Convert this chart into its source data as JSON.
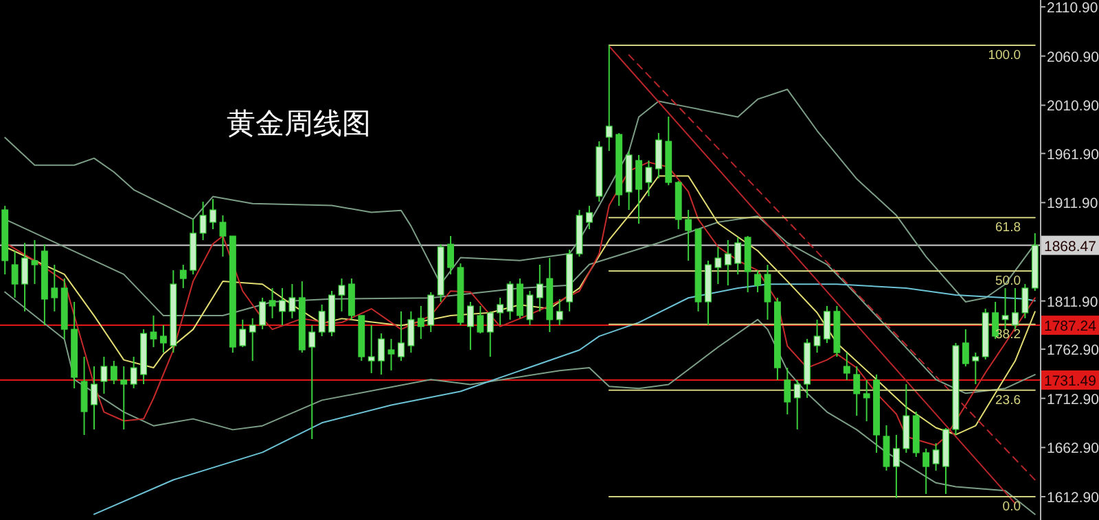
{
  "chart_data": {
    "type": "candlestick",
    "title": "黄金周线图",
    "color": "#3ccf3c",
    "categories": [
      null,
      null,
      null,
      null,
      null,
      null,
      null,
      null,
      null,
      null,
      null,
      null,
      null,
      null,
      null,
      null,
      null,
      null,
      null,
      null,
      null,
      null,
      null,
      null,
      null,
      null,
      null,
      null,
      null,
      null,
      null,
      null,
      null,
      null,
      null,
      null,
      null,
      null,
      null,
      null,
      null,
      null,
      null,
      null,
      null,
      null,
      null,
      null,
      null,
      null,
      null,
      null,
      null,
      null,
      null,
      null,
      null,
      null,
      null,
      null,
      null,
      null,
      null,
      null,
      null,
      null,
      null,
      null,
      null,
      null,
      null,
      null,
      null,
      null,
      null,
      null,
      null,
      null,
      null,
      null,
      null,
      null,
      null,
      null,
      null,
      null,
      null,
      null,
      null,
      null,
      null,
      null,
      null,
      null,
      null,
      null,
      null,
      null,
      null,
      null,
      null,
      null,
      null,
      null,
      null
    ],
    "ohlc": [
      [
        1904.5,
        1908.6,
        1838.9,
        1852.9
      ],
      [
        1848.7,
        1862.6,
        1815.2,
        1829.1
      ],
      [
        1829.1,
        1871.0,
        1801.3,
        1855.6
      ],
      [
        1852.9,
        1873.8,
        1829.1,
        1848.7
      ],
      [
        1862.6,
        1869.6,
        1787.3,
        1813.8
      ],
      [
        1825.0,
        1848.7,
        1801.3,
        1815.2
      ],
      [
        1825.0,
        1834.7,
        1773.3,
        1783.1
      ],
      [
        1783.1,
        1811.0,
        1723.1,
        1734.3
      ],
      [
        1730.1,
        1755.2,
        1675.7,
        1699.4
      ],
      [
        1706.4,
        1745.4,
        1681.3,
        1727.3
      ],
      [
        1730.1,
        1755.2,
        1717.6,
        1745.4
      ],
      [
        1745.4,
        1751.0,
        1727.3,
        1731.5
      ],
      [
        1731.5,
        1745.4,
        1681.3,
        1727.3
      ],
      [
        1727.3,
        1755.2,
        1723.1,
        1744.0
      ],
      [
        1737.1,
        1783.1,
        1727.3,
        1778.9
      ],
      [
        1780.3,
        1797.1,
        1765.0,
        1773.3
      ],
      [
        1776.1,
        1787.3,
        1759.4,
        1769.2
      ],
      [
        1766.4,
        1843.1,
        1759.4,
        1829.1
      ],
      [
        1843.1,
        1848.7,
        1825.0,
        1834.7
      ],
      [
        1843.1,
        1894.7,
        1838.9,
        1880.8
      ],
      [
        1880.8,
        1912.8,
        1873.8,
        1898.9
      ],
      [
        1891.9,
        1915.6,
        1884.9,
        1904.5
      ],
      [
        1891.9,
        1898.9,
        1857.0,
        1877.9
      ],
      [
        1877.9,
        1877.9,
        1759.4,
        1765.0
      ],
      [
        1766.4,
        1792.9,
        1765.0,
        1783.1
      ],
      [
        1780.3,
        1794.3,
        1751.0,
        1787.3
      ],
      [
        1787.3,
        1815.2,
        1783.1,
        1811.0
      ],
      [
        1812.4,
        1825.0,
        1794.3,
        1806.8
      ],
      [
        1801.3,
        1825.0,
        1787.3,
        1812.4
      ],
      [
        1801.3,
        1829.1,
        1794.3,
        1815.2
      ],
      [
        1815.2,
        1831.9,
        1759.4,
        1762.2
      ],
      [
        1765.0,
        1787.3,
        1671.5,
        1780.3
      ],
      [
        1780.3,
        1808.2,
        1776.1,
        1801.3
      ],
      [
        1780.3,
        1822.2,
        1776.1,
        1817.9
      ],
      [
        1817.9,
        1834.7,
        1801.3,
        1827.7
      ],
      [
        1829.1,
        1834.7,
        1792.9,
        1797.1
      ],
      [
        1797.1,
        1797.1,
        1751.0,
        1755.2
      ],
      [
        1751.0,
        1787.3,
        1738.5,
        1755.2
      ],
      [
        1751.0,
        1778.9,
        1737.1,
        1773.3
      ],
      [
        1762.2,
        1773.3,
        1741.3,
        1758.0
      ],
      [
        1755.2,
        1801.3,
        1751.0,
        1769.2
      ],
      [
        1766.4,
        1801.3,
        1759.4,
        1792.9
      ],
      [
        1794.3,
        1806.8,
        1773.3,
        1785.9
      ],
      [
        1787.3,
        1820.8,
        1780.3,
        1817.9
      ],
      [
        1817.9,
        1869.6,
        1811.0,
        1866.8
      ],
      [
        1869.6,
        1878.0,
        1838.9,
        1845.9
      ],
      [
        1845.9,
        1850.1,
        1787.3,
        1790.1
      ],
      [
        1785.9,
        1811.0,
        1762.2,
        1806.8
      ],
      [
        1797.1,
        1806.8,
        1778.9,
        1780.3
      ],
      [
        1780.3,
        1801.3,
        1755.2,
        1799.9
      ],
      [
        1799.9,
        1815.2,
        1787.3,
        1808.2
      ],
      [
        1801.3,
        1831.9,
        1792.9,
        1829.1
      ],
      [
        1829.1,
        1834.7,
        1794.3,
        1797.1
      ],
      [
        1792.9,
        1822.2,
        1787.3,
        1817.9
      ],
      [
        1815.2,
        1848.7,
        1801.3,
        1829.1
      ],
      [
        1834.7,
        1855.6,
        1780.3,
        1792.9
      ],
      [
        1792.9,
        1813.8,
        1787.3,
        1801.3
      ],
      [
        1811.0,
        1864.0,
        1801.3,
        1859.8
      ],
      [
        1859.8,
        1904.5,
        1857.0,
        1898.9
      ],
      [
        1891.9,
        1908.6,
        1884.9,
        1901.7
      ],
      [
        1918.4,
        1974.2,
        1912.8,
        1968.6
      ],
      [
        1978.4,
        2071.9,
        1964.5,
        1989.6
      ],
      [
        1981.2,
        1982.6,
        1908.6,
        1919.8
      ],
      [
        1922.6,
        1964.5,
        1904.5,
        1960.3
      ],
      [
        1954.7,
        1960.3,
        1890.5,
        1925.4
      ],
      [
        1932.4,
        1954.7,
        1918.4,
        1947.7
      ],
      [
        1946.3,
        1982.6,
        1936.6,
        1975.6
      ],
      [
        1974.2,
        1999.3,
        1929.6,
        1932.4
      ],
      [
        1932.4,
        1933.8,
        1884.9,
        1894.7
      ],
      [
        1894.7,
        1904.5,
        1852.9,
        1883.6
      ],
      [
        1884.9,
        1884.9,
        1801.3,
        1811.0
      ],
      [
        1811.0,
        1852.9,
        1787.3,
        1848.7
      ],
      [
        1845.9,
        1866.8,
        1829.1,
        1855.6
      ],
      [
        1848.7,
        1873.8,
        1827.7,
        1859.8
      ],
      [
        1850.1,
        1876.6,
        1838.9,
        1871.0
      ],
      [
        1876.6,
        1878.0,
        1820.8,
        1841.7
      ],
      [
        1838.9,
        1843.1,
        1820.8,
        1827.7
      ],
      [
        1838.9,
        1848.7,
        1792.9,
        1811.0
      ],
      [
        1811.0,
        1815.2,
        1731.5,
        1744.0
      ],
      [
        1731.5,
        1744.0,
        1696.6,
        1709.2
      ],
      [
        1713.4,
        1731.5,
        1681.3,
        1727.3
      ],
      [
        1727.3,
        1773.3,
        1713.4,
        1769.2
      ],
      [
        1766.4,
        1792.9,
        1759.4,
        1776.1
      ],
      [
        1773.3,
        1806.8,
        1769.2,
        1801.3
      ],
      [
        1801.3,
        1806.8,
        1755.2,
        1759.4
      ],
      [
        1745.4,
        1759.4,
        1731.5,
        1738.5
      ],
      [
        1737.1,
        1745.4,
        1695.2,
        1717.6
      ],
      [
        1717.6,
        1731.5,
        1689.6,
        1713.4
      ],
      [
        1731.5,
        1737.1,
        1657.6,
        1675.7
      ],
      [
        1674.3,
        1685.5,
        1639.4,
        1643.6
      ],
      [
        1643.6,
        1675.7,
        1611.5,
        1661.8
      ],
      [
        1661.8,
        1727.3,
        1657.6,
        1695.2
      ],
      [
        1695.2,
        1699.4,
        1653.4,
        1657.6
      ],
      [
        1657.6,
        1661.8,
        1615.7,
        1643.6
      ],
      [
        1646.4,
        1667.3,
        1639.4,
        1660.4
      ],
      [
        1643.6,
        1682.7,
        1615.7,
        1681.3
      ],
      [
        1681.3,
        1769.2,
        1675.7,
        1766.4
      ],
      [
        1769.2,
        1783.1,
        1745.4,
        1748.2
      ],
      [
        1751.0,
        1759.4,
        1727.3,
        1755.2
      ],
      [
        1755.2,
        1804.0,
        1752.4,
        1799.9
      ],
      [
        1799.9,
        1811.0,
        1773.3,
        1776.1
      ],
      [
        1793.0,
        1825.0,
        1783.1,
        1797.1
      ],
      [
        1787.3,
        1825.0,
        1783.1,
        1799.9
      ],
      [
        1799.9,
        1829.1,
        1794.3,
        1825.0
      ],
      [
        1825.0,
        1880.8,
        1822.2,
        1868.47
      ]
    ],
    "series": [
      {
        "type": "line",
        "color": "#7d9e86",
        "values": [
          1978,
          null,
          null,
          1950,
          null,
          null,
          null,
          1950,
          null,
          1957,
          null,
          1943,
          null,
          1925,
          null,
          null,
          null,
          null,
          null,
          1895,
          null,
          1918,
          null,
          null,
          null,
          1911,
          null,
          null,
          null,
          null,
          null,
          null,
          null,
          1909,
          null,
          null,
          null,
          1902,
          null,
          null,
          1904,
          1888,
          null,
          null,
          1829,
          null,
          1856,
          null,
          null,
          null,
          null,
          null,
          1853,
          null,
          null,
          null,
          null,
          1860,
          1874,
          null,
          1909,
          null,
          null,
          1964,
          1999,
          null,
          2015,
          null,
          null,
          2009,
          null,
          null,
          null,
          null,
          1999,
          null,
          2017,
          null,
          null,
          2027,
          null,
          null,
          1985,
          null,
          null,
          null,
          1936,
          null,
          null,
          null,
          1899,
          null,
          null,
          1857,
          null,
          null,
          null,
          1811,
          null,
          1815,
          null,
          1829,
          null,
          null,
          1870
        ]
      },
      {
        "type": "line",
        "color": "#7d9e86",
        "values": [
          1895,
          null,
          null,
          null,
          null,
          null,
          null,
          null,
          null,
          null,
          null,
          null,
          1839,
          null,
          null,
          null,
          1797,
          null,
          null,
          null,
          null,
          null,
          1797,
          null,
          null,
          null,
          null,
          1811,
          null,
          null,
          null,
          null,
          null,
          1814,
          null,
          null,
          null,
          null,
          null,
          null,
          null,
          null,
          null,
          1815,
          null,
          null,
          null,
          null,
          null,
          null,
          null,
          null,
          1825,
          null,
          null,
          null,
          null,
          1828,
          null,
          1849,
          null,
          null,
          null,
          null,
          null,
          null,
          1871,
          null,
          null,
          null,
          null,
          null,
          1892,
          null,
          null,
          null,
          1898,
          null,
          null,
          1871,
          null,
          null,
          null,
          1849,
          null,
          null,
          1818,
          null,
          null,
          null,
          null,
          null,
          null,
          null,
          1732,
          null,
          null,
          1718,
          null,
          null,
          null,
          1723,
          null,
          null,
          1737
        ]
      },
      {
        "type": "line",
        "color": "#7d9e86",
        "values": [
          1821,
          null,
          null,
          null,
          null,
          null,
          1773,
          1732,
          null,
          null,
          null,
          null,
          1699,
          null,
          null,
          1685,
          null,
          null,
          null,
          1692,
          null,
          null,
          null,
          1681,
          null,
          null,
          1685,
          null,
          null,
          null,
          null,
          null,
          1711,
          null,
          null,
          null,
          null,
          null,
          null,
          null,
          null,
          null,
          null,
          1732,
          null,
          null,
          null,
          1727,
          null,
          null,
          null,
          null,
          null,
          null,
          null,
          null,
          1741,
          null,
          null,
          1744,
          null,
          1725,
          null,
          null,
          1723,
          null,
          null,
          1727,
          null,
          null,
          null,
          null,
          1765,
          null,
          null,
          null,
          1793,
          1783,
          null,
          1741,
          null,
          1718,
          null,
          1699,
          null,
          null,
          1681,
          null,
          null,
          1658,
          null,
          null,
          null,
          null,
          1627,
          null,
          1623,
          null,
          null,
          null,
          null,
          1619,
          null,
          null,
          1595
        ]
      },
      {
        "type": "line",
        "color": "#6cc3d6",
        "values": [
          null,
          null,
          null,
          null,
          null,
          null,
          null,
          null,
          null,
          1595,
          null,
          null,
          null,
          null,
          null,
          null,
          null,
          1630,
          null,
          null,
          null,
          null,
          null,
          null,
          null,
          null,
          1658,
          null,
          null,
          null,
          null,
          null,
          1688,
          null,
          null,
          null,
          null,
          null,
          null,
          1706,
          null,
          null,
          null,
          null,
          null,
          null,
          1720,
          null,
          null,
          null,
          null,
          null,
          1741,
          null,
          null,
          null,
          null,
          null,
          1762,
          null,
          1776,
          null,
          null,
          null,
          1790,
          null,
          null,
          null,
          null,
          1815,
          null,
          null,
          null,
          null,
          1825,
          null,
          null,
          1829,
          null,
          null,
          null,
          null,
          null,
          null,
          1829,
          null,
          null,
          null,
          null,
          null,
          null,
          1825,
          null,
          null,
          null,
          null,
          1818,
          null,
          null,
          null,
          null,
          null,
          null,
          1814,
          1812
        ]
      },
      {
        "type": "line",
        "color": "#e3dc72",
        "values": [
          1867,
          null,
          null,
          1853,
          null,
          null,
          1839,
          null,
          null,
          1797,
          null,
          null,
          1752,
          null,
          null,
          1744,
          1758,
          null,
          null,
          1783,
          null,
          null,
          1832,
          null,
          null,
          null,
          1829,
          null,
          null,
          1808,
          null,
          null,
          1789,
          null,
          1794,
          null,
          null,
          null,
          null,
          null,
          1787,
          null,
          null,
          null,
          null,
          1797,
          null,
          null,
          null,
          1800,
          null,
          null,
          1808,
          null,
          null,
          1804,
          null,
          null,
          1825,
          null,
          null,
          1874,
          null,
          null,
          1911,
          null,
          1939,
          null,
          null,
          1939,
          null,
          null,
          1891,
          null,
          null,
          null,
          1863,
          null,
          null,
          1832,
          null,
          null,
          1800,
          null,
          1769,
          null,
          null,
          null,
          1732,
          null,
          null,
          1704,
          null,
          null,
          1683,
          null,
          1676,
          null,
          1685,
          null,
          1718,
          null,
          1751,
          null,
          1801
        ]
      },
      {
        "type": "line",
        "color": "#c62a2a",
        "values": [
          1871,
          null,
          null,
          1853,
          null,
          null,
          1832,
          null,
          null,
          1727,
          1699,
          null,
          1690,
          null,
          1692,
          1713,
          null,
          1762,
          null,
          1832,
          null,
          1870,
          1878,
          null,
          1822,
          null,
          1794,
          1783,
          null,
          null,
          1794,
          null,
          null,
          1789,
          1790,
          null,
          null,
          1804,
          null,
          null,
          1783,
          null,
          null,
          1797,
          null,
          1822,
          null,
          1821,
          null,
          null,
          1786,
          null,
          1794,
          null,
          null,
          1807,
          null,
          null,
          1822,
          null,
          1860,
          1909,
          null,
          1944,
          null,
          1953,
          null,
          1948,
          null,
          1923,
          1895,
          null,
          1867,
          null,
          1853,
          null,
          1843,
          null,
          1811,
          1766,
          null,
          1744,
          null,
          1752,
          1758,
          null,
          1744,
          null,
          1718,
          null,
          1697,
          1674,
          null,
          null,
          1665,
          1674,
          null,
          1706,
          null,
          1739,
          null,
          1769,
          null,
          null,
          1815
        ]
      },
      {
        "type": "line",
        "color": "#b8252a",
        "values": [
          null,
          null,
          null,
          null,
          null,
          null,
          null,
          null,
          null,
          null,
          null,
          null,
          null,
          null,
          null,
          null,
          null,
          null,
          null,
          null,
          null,
          null,
          null,
          null,
          null,
          null,
          null,
          null,
          null,
          null,
          null,
          null,
          null,
          null,
          null,
          null,
          null,
          null,
          null,
          null,
          null,
          null,
          null,
          null,
          null,
          null,
          null,
          null,
          null,
          null,
          null,
          null,
          null,
          null,
          null,
          null,
          null,
          null,
          null,
          null,
          null,
          2071,
          null,
          null,
          null,
          null,
          null,
          null,
          null,
          null,
          null,
          null,
          null,
          null,
          null,
          null,
          null,
          null,
          null,
          null,
          null,
          null,
          null,
          null,
          null,
          null,
          null,
          null,
          null,
          null,
          null,
          null,
          null,
          null,
          null,
          null,
          null,
          null,
          null,
          null,
          null,
          null,
          1606,
          null,
          null
        ]
      },
      {
        "type": "line",
        "color": "#b8252a",
        "line_style": "dashed",
        "values": [
          null,
          null,
          null,
          null,
          null,
          null,
          null,
          null,
          null,
          null,
          null,
          null,
          null,
          null,
          null,
          null,
          null,
          null,
          null,
          null,
          null,
          null,
          null,
          null,
          null,
          null,
          null,
          null,
          null,
          null,
          null,
          null,
          null,
          null,
          null,
          null,
          null,
          null,
          null,
          null,
          null,
          null,
          null,
          null,
          null,
          null,
          null,
          null,
          null,
          null,
          null,
          null,
          null,
          null,
          null,
          null,
          null,
          null,
          null,
          null,
          null,
          null,
          null,
          2062,
          null,
          null,
          null,
          null,
          null,
          null,
          null,
          null,
          null,
          null,
          null,
          null,
          null,
          null,
          null,
          null,
          null,
          null,
          null,
          null,
          null,
          null,
          null,
          null,
          null,
          null,
          null,
          null,
          null,
          null,
          null,
          null,
          null,
          null,
          null,
          null,
          null,
          null,
          null,
          null,
          1630
        ]
      },
      {
        "type": "line",
        "name": "100.0",
        "color": "#d2d27e",
        "values": [
          null,
          null,
          null,
          null,
          null,
          null,
          null,
          null,
          null,
          null,
          null,
          null,
          null,
          null,
          null,
          null,
          null,
          null,
          null,
          null,
          null,
          null,
          null,
          null,
          null,
          null,
          null,
          null,
          null,
          null,
          null,
          null,
          null,
          null,
          null,
          null,
          null,
          null,
          null,
          null,
          null,
          null,
          null,
          null,
          null,
          null,
          null,
          null,
          null,
          null,
          null,
          null,
          null,
          null,
          null,
          null,
          null,
          null,
          null,
          null,
          null,
          2071.9,
          null,
          null,
          null,
          null,
          null,
          null,
          null,
          null,
          null,
          null,
          null,
          null,
          null,
          null,
          null,
          null,
          null,
          null,
          null,
          null,
          null,
          null,
          null,
          null,
          null,
          null,
          null,
          null,
          null,
          null,
          null,
          null,
          null,
          null,
          null,
          null,
          null,
          null,
          null,
          null,
          null,
          null,
          2071.9
        ]
      },
      {
        "type": "line",
        "name": "61.8",
        "color": "#d2d27e",
        "values": [
          null,
          null,
          null,
          null,
          null,
          null,
          null,
          null,
          null,
          null,
          null,
          null,
          null,
          null,
          null,
          null,
          null,
          null,
          null,
          null,
          null,
          null,
          null,
          null,
          null,
          null,
          null,
          null,
          null,
          null,
          null,
          null,
          null,
          null,
          null,
          null,
          null,
          null,
          null,
          null,
          null,
          null,
          null,
          null,
          null,
          null,
          null,
          null,
          null,
          null,
          null,
          null,
          null,
          null,
          null,
          null,
          null,
          null,
          null,
          null,
          null,
          1896.6,
          null,
          null,
          null,
          null,
          null,
          null,
          null,
          null,
          null,
          null,
          null,
          null,
          null,
          null,
          null,
          null,
          null,
          null,
          null,
          null,
          null,
          null,
          null,
          null,
          null,
          null,
          null,
          null,
          null,
          null,
          null,
          null,
          null,
          null,
          null,
          null,
          null,
          null,
          null,
          null,
          null,
          null,
          1896.6
        ]
      },
      {
        "type": "line",
        "name": "50.0",
        "color": "#d2d27e",
        "values": [
          null,
          null,
          null,
          null,
          null,
          null,
          null,
          null,
          null,
          null,
          null,
          null,
          null,
          null,
          null,
          null,
          null,
          null,
          null,
          null,
          null,
          null,
          null,
          null,
          null,
          null,
          null,
          null,
          null,
          null,
          null,
          null,
          null,
          null,
          null,
          null,
          null,
          null,
          null,
          null,
          null,
          null,
          null,
          null,
          null,
          null,
          null,
          null,
          null,
          null,
          null,
          null,
          null,
          null,
          null,
          null,
          null,
          null,
          null,
          null,
          null,
          1842.4,
          null,
          null,
          null,
          null,
          null,
          null,
          null,
          null,
          null,
          null,
          null,
          null,
          null,
          null,
          null,
          null,
          null,
          null,
          null,
          null,
          null,
          null,
          null,
          null,
          null,
          null,
          null,
          null,
          null,
          null,
          null,
          null,
          null,
          null,
          null,
          null,
          null,
          null,
          null,
          null,
          null,
          null,
          1842.4
        ]
      },
      {
        "type": "line",
        "name": "38.2",
        "color": "#d2d27e",
        "values": [
          null,
          null,
          null,
          null,
          null,
          null,
          null,
          null,
          null,
          null,
          null,
          null,
          null,
          null,
          null,
          null,
          null,
          null,
          null,
          null,
          null,
          null,
          null,
          null,
          null,
          null,
          null,
          null,
          null,
          null,
          null,
          null,
          null,
          null,
          null,
          null,
          null,
          null,
          null,
          null,
          null,
          null,
          null,
          null,
          null,
          null,
          null,
          null,
          null,
          null,
          null,
          null,
          null,
          null,
          null,
          null,
          null,
          null,
          null,
          null,
          null,
          1788.2,
          null,
          null,
          null,
          null,
          null,
          null,
          null,
          null,
          null,
          null,
          null,
          null,
          null,
          null,
          null,
          null,
          null,
          null,
          null,
          null,
          null,
          null,
          null,
          null,
          null,
          null,
          null,
          null,
          null,
          null,
          null,
          null,
          null,
          null,
          null,
          null,
          null,
          null,
          null,
          null,
          null,
          null,
          1788.2
        ]
      },
      {
        "type": "line",
        "name": "23.6",
        "color": "#d2d27e",
        "values": [
          null,
          null,
          null,
          null,
          null,
          null,
          null,
          null,
          null,
          null,
          null,
          null,
          null,
          null,
          null,
          null,
          null,
          null,
          null,
          null,
          null,
          null,
          null,
          null,
          null,
          null,
          null,
          null,
          null,
          null,
          null,
          null,
          null,
          null,
          null,
          null,
          null,
          null,
          null,
          null,
          null,
          null,
          null,
          null,
          null,
          null,
          null,
          null,
          null,
          null,
          null,
          null,
          null,
          null,
          null,
          null,
          null,
          null,
          null,
          null,
          null,
          1721.2,
          null,
          null,
          null,
          null,
          null,
          null,
          null,
          null,
          null,
          null,
          null,
          null,
          null,
          null,
          null,
          null,
          null,
          null,
          null,
          null,
          null,
          null,
          null,
          null,
          null,
          null,
          null,
          null,
          null,
          null,
          null,
          null,
          null,
          null,
          null,
          null,
          null,
          null,
          null,
          null,
          null,
          null,
          1721.2
        ]
      },
      {
        "type": "line",
        "name": "0.0",
        "color": "#d2d27e",
        "values": [
          null,
          null,
          null,
          null,
          null,
          null,
          null,
          null,
          null,
          null,
          null,
          null,
          null,
          null,
          null,
          null,
          null,
          null,
          null,
          null,
          null,
          null,
          null,
          null,
          null,
          null,
          null,
          null,
          null,
          null,
          null,
          null,
          null,
          null,
          null,
          null,
          null,
          null,
          null,
          null,
          null,
          null,
          null,
          null,
          null,
          null,
          null,
          null,
          null,
          null,
          null,
          null,
          null,
          null,
          null,
          null,
          null,
          null,
          null,
          null,
          null,
          1612.9,
          null,
          null,
          null,
          null,
          null,
          null,
          null,
          null,
          null,
          null,
          null,
          null,
          null,
          null,
          null,
          null,
          null,
          null,
          null,
          null,
          null,
          null,
          null,
          null,
          null,
          null,
          null,
          null,
          null,
          null,
          null,
          null,
          null,
          null,
          null,
          null,
          null,
          null,
          null,
          null,
          null,
          null,
          1612.9
        ]
      }
    ],
    "ref_lines": [
      {
        "axis": "y",
        "value": 1868.47,
        "label": "1868.47",
        "color": "#d0d0d0"
      },
      {
        "axis": "y",
        "value": 1787.24,
        "label": "1787.24",
        "color": "#e01818"
      },
      {
        "axis": "y",
        "value": 1731.49,
        "label": "1731.49",
        "color": "#e01818"
      }
    ],
    "ylim": [
      1589.2,
      2117.9
    ],
    "yticks": [
      {
        "value": 2110.9,
        "label": "2110.90"
      },
      {
        "value": 2060.9,
        "label": "2060.90"
      },
      {
        "value": 2010.9,
        "label": "2010.90"
      },
      {
        "value": 1961.9,
        "label": "1961.90"
      },
      {
        "value": 1911.9,
        "label": "1911.90"
      },
      {
        "value": 1811.9,
        "label": "1811.90"
      },
      {
        "value": 1762.9,
        "label": "1762.90"
      },
      {
        "value": 1712.9,
        "label": "1712.90"
      },
      {
        "value": 1662.9,
        "label": "1662.90"
      },
      {
        "value": 1612.9,
        "label": "1612.90"
      }
    ],
    "tick_labels": "y"
  }
}
